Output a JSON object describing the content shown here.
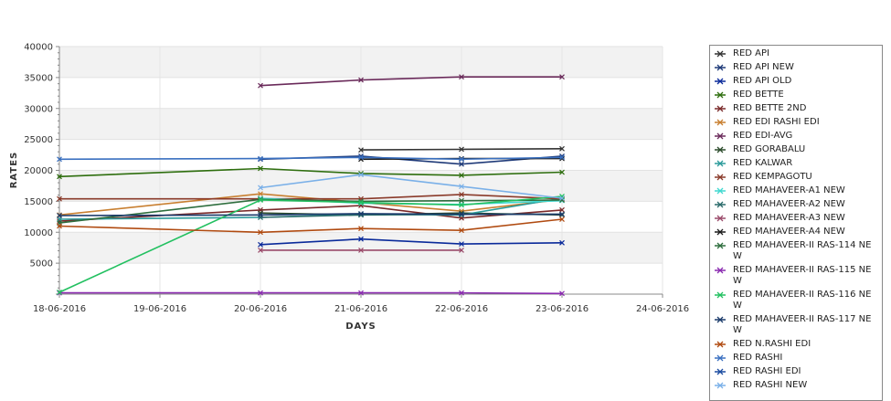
{
  "chart_data": {
    "type": "line",
    "xlabel": "DAYS",
    "ylabel": "RATES",
    "x_ticks": [
      "18-06-2016",
      "19-06-2016",
      "20-06-2016",
      "21-06-2016",
      "22-06-2016",
      "23-06-2016",
      "24-06-2016"
    ],
    "y_ticks": [
      "5000",
      "10000",
      "15000",
      "20000",
      "25000",
      "30000",
      "35000",
      "40000"
    ],
    "xlim": [
      "18-06-2016",
      "24-06-2016"
    ],
    "ylim": [
      0,
      40000
    ],
    "grid": "horizontal alternating bands",
    "legend_position": "right",
    "series": [
      {
        "name": "RED API",
        "color": "#333333",
        "points": [
          [
            "21-06-2016",
            23300
          ],
          [
            "22-06-2016",
            23400
          ],
          [
            "23-06-2016",
            23500
          ]
        ]
      },
      {
        "name": "RED API NEW",
        "color": "#1f3a78",
        "points": [
          [
            "20-06-2016",
            21800
          ],
          [
            "21-06-2016",
            22300
          ],
          [
            "22-06-2016",
            21000
          ],
          [
            "23-06-2016",
            22300
          ]
        ]
      },
      {
        "name": "RED API OLD",
        "color": "#0a2a9a",
        "points": [
          [
            "20-06-2016",
            8000
          ],
          [
            "21-06-2016",
            8900
          ],
          [
            "22-06-2016",
            8100
          ],
          [
            "23-06-2016",
            8300
          ]
        ]
      },
      {
        "name": "RED BETTE",
        "color": "#2e6e0e",
        "points": [
          [
            "18-06-2016",
            19000
          ],
          [
            "20-06-2016",
            20300
          ],
          [
            "21-06-2016",
            19500
          ],
          [
            "22-06-2016",
            19200
          ],
          [
            "23-06-2016",
            19700
          ]
        ]
      },
      {
        "name": "RED BETTE 2ND",
        "color": "#7a2a2a",
        "points": [
          [
            "18-06-2016",
            11800
          ],
          [
            "20-06-2016",
            13600
          ],
          [
            "21-06-2016",
            14300
          ],
          [
            "22-06-2016",
            12300
          ],
          [
            "23-06-2016",
            13600
          ]
        ]
      },
      {
        "name": "RED EDI RASHI EDI",
        "color": "#c87f30",
        "points": [
          [
            "18-06-2016",
            12800
          ],
          [
            "20-06-2016",
            16200
          ],
          [
            "21-06-2016",
            14800
          ],
          [
            "22-06-2016",
            13400
          ],
          [
            "23-06-2016",
            15300
          ]
        ]
      },
      {
        "name": "RED EDI-AVG",
        "color": "#6a2a5a",
        "points": [
          [
            "20-06-2016",
            33700
          ],
          [
            "21-06-2016",
            34600
          ],
          [
            "22-06-2016",
            35100
          ],
          [
            "23-06-2016",
            35100
          ]
        ]
      },
      {
        "name": "RED GORABALU",
        "color": "#2a4a2a",
        "points": [
          [
            "20-06-2016",
            13100
          ],
          [
            "21-06-2016",
            12800
          ],
          [
            "22-06-2016",
            13100
          ],
          [
            "23-06-2016",
            12800
          ]
        ]
      },
      {
        "name": "RED KALWAR",
        "color": "#2a9a9a",
        "points": [
          [
            "18-06-2016",
            12100
          ],
          [
            "20-06-2016",
            12400
          ],
          [
            "21-06-2016",
            12900
          ],
          [
            "22-06-2016",
            12800
          ],
          [
            "23-06-2016",
            15500
          ]
        ]
      },
      {
        "name": "RED KEMPAGOTU",
        "color": "#8a3a2a",
        "points": [
          [
            "18-06-2016",
            15400
          ],
          [
            "20-06-2016",
            15400
          ],
          [
            "21-06-2016",
            15400
          ],
          [
            "22-06-2016",
            16100
          ],
          [
            "23-06-2016",
            15400
          ]
        ]
      },
      {
        "name": "RED MAHAVEER-A1 NEW",
        "color": "#40d8d0",
        "points": [
          [
            "20-06-2016",
            15500
          ],
          [
            "21-06-2016",
            14700
          ],
          [
            "22-06-2016",
            14500
          ],
          [
            "23-06-2016",
            15100
          ]
        ]
      },
      {
        "name": "RED MAHAVEER-A2 NEW",
        "color": "#2a6a6a",
        "points": [
          [
            "20-06-2016",
            12400
          ],
          [
            "21-06-2016",
            12800
          ],
          [
            "22-06-2016",
            12900
          ],
          [
            "23-06-2016",
            12900
          ]
        ]
      },
      {
        "name": "RED MAHAVEER-A3 NEW",
        "color": "#9a4a6a",
        "points": [
          [
            "20-06-2016",
            7100
          ],
          [
            "21-06-2016",
            7100
          ],
          [
            "22-06-2016",
            7100
          ]
        ]
      },
      {
        "name": "RED MAHAVEER-A4 NEW",
        "color": "#1a1a1a",
        "points": [
          [
            "21-06-2016",
            21800
          ],
          [
            "22-06-2016",
            21900
          ],
          [
            "23-06-2016",
            21900
          ]
        ]
      },
      {
        "name": "RED MAHAVEER-II RAS-114 NEW",
        "color": "#2e6e3e",
        "points": [
          [
            "18-06-2016",
            11500
          ],
          [
            "20-06-2016",
            15300
          ],
          [
            "21-06-2016",
            15000
          ],
          [
            "22-06-2016",
            15100
          ],
          [
            "23-06-2016",
            15200
          ]
        ]
      },
      {
        "name": "RED MAHAVEER-II RAS-115 NEW",
        "color": "#8a2ab0",
        "points": [
          [
            "18-06-2016",
            200
          ],
          [
            "20-06-2016",
            200
          ],
          [
            "21-06-2016",
            200
          ],
          [
            "22-06-2016",
            200
          ],
          [
            "23-06-2016",
            100
          ]
        ]
      },
      {
        "name": "RED MAHAVEER-II RAS-116 NEW",
        "color": "#22c060",
        "points": [
          [
            "18-06-2016",
            300
          ],
          [
            "20-06-2016",
            15200
          ],
          [
            "21-06-2016",
            14800
          ],
          [
            "22-06-2016",
            14400
          ],
          [
            "23-06-2016",
            15800
          ]
        ]
      },
      {
        "name": "RED MAHAVEER-II RAS-117 NEW",
        "color": "#1a3a6a",
        "points": [
          [
            "18-06-2016",
            12700
          ],
          [
            "20-06-2016",
            12800
          ],
          [
            "21-06-2016",
            13000
          ],
          [
            "22-06-2016",
            12900
          ],
          [
            "23-06-2016",
            12900
          ]
        ]
      },
      {
        "name": "RED N.RASHI EDI",
        "color": "#b04a10",
        "points": [
          [
            "18-06-2016",
            11000
          ],
          [
            "20-06-2016",
            10000
          ],
          [
            "21-06-2016",
            10600
          ],
          [
            "22-06-2016",
            10300
          ],
          [
            "23-06-2016",
            12100
          ]
        ]
      },
      {
        "name": "RED RASHI",
        "color": "#3a70c0",
        "points": [
          [
            "18-06-2016",
            21800
          ],
          [
            "20-06-2016",
            21900
          ],
          [
            "21-06-2016",
            22100
          ],
          [
            "22-06-2016",
            21800
          ],
          [
            "23-06-2016",
            22100
          ]
        ]
      },
      {
        "name": "RED RASHI EDI",
        "color": "#1a4aa0",
        "points": []
      },
      {
        "name": "RED RASHI NEW",
        "color": "#7ab0e8",
        "points": [
          [
            "20-06-2016",
            17200
          ],
          [
            "21-06-2016",
            19300
          ],
          [
            "22-06-2016",
            17400
          ],
          [
            "23-06-2016",
            15500
          ]
        ]
      }
    ]
  }
}
